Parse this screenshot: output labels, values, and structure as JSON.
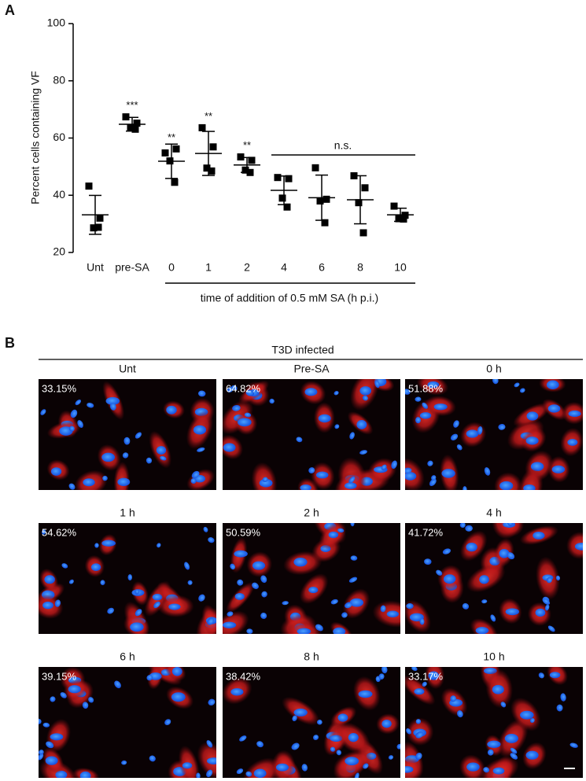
{
  "panel_a": {
    "label": "A"
  },
  "chart_data": {
    "type": "dotplot",
    "ylabel": "Percent cells containing VF",
    "categories": [
      "Unt",
      "pre-SA",
      "0",
      "1",
      "2",
      "4",
      "6",
      "8",
      "10"
    ],
    "values": [
      [
        43.2,
        32.0,
        28.6,
        28.8
      ],
      [
        67.4,
        65.2,
        63.6,
        63.08
      ],
      [
        54.8,
        56.2,
        52.0,
        44.52
      ],
      [
        63.6,
        56.9,
        49.5,
        48.48
      ],
      [
        53.4,
        52.2,
        48.8,
        47.96
      ],
      [
        46.2,
        45.8,
        39.0,
        35.88
      ],
      [
        49.6,
        38.6,
        38.0,
        30.4
      ],
      [
        46.8,
        42.6,
        37.4,
        26.88
      ],
      [
        36.2,
        33.0,
        31.8,
        31.68
      ]
    ],
    "means": [
      33.15,
      64.82,
      51.88,
      54.62,
      50.59,
      41.72,
      39.15,
      38.42,
      33.17
    ],
    "sd": [
      6.8,
      2.4,
      6.0,
      7.7,
      2.6,
      5.0,
      7.9,
      8.4,
      2.3
    ],
    "color": "#000000",
    "significance": [
      null,
      "***",
      "**",
      "**",
      "**",
      null,
      null,
      null,
      null
    ],
    "group_annotation": "n.s.",
    "xgroup_label": "time of addition of 0.5 mM SA (h p.i.)",
    "ylim": [
      20,
      100
    ],
    "yticks": [
      20,
      40,
      60,
      80,
      100
    ]
  },
  "panel_b": {
    "label": "B",
    "header": "T3D infected",
    "images": [
      {
        "title": "Unt",
        "percent": "33.15%"
      },
      {
        "title": "Pre-SA",
        "percent": "64.82%"
      },
      {
        "title": "0 h",
        "percent": "51.88%"
      },
      {
        "title": "1 h",
        "percent": "54.62%"
      },
      {
        "title": "2 h",
        "percent": "50.59%"
      },
      {
        "title": "4 h",
        "percent": "41.72%"
      },
      {
        "title": "6 h",
        "percent": "39.15%"
      },
      {
        "title": "8 h",
        "percent": "38.42%"
      },
      {
        "title": "10 h",
        "percent": "33.17%"
      }
    ]
  }
}
